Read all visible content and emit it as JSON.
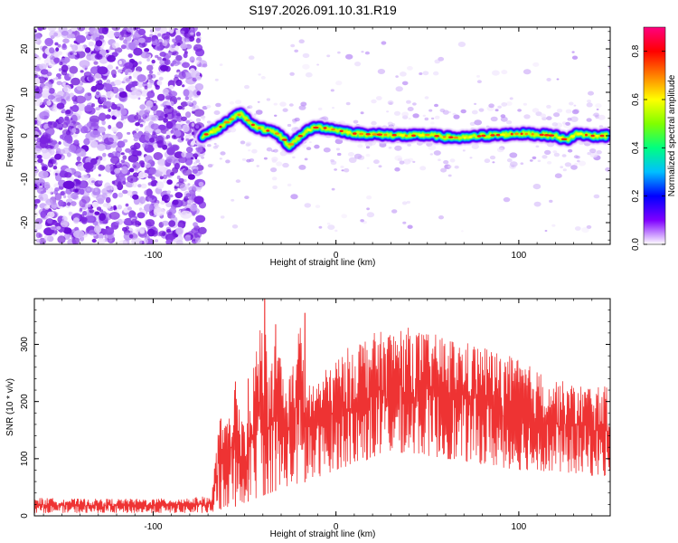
{
  "title": "S197.2026.091.10.31.R19",
  "chart_data": [
    {
      "type": "heatmap",
      "name": "spectrogram",
      "xlabel": "Height of straight line (km)",
      "ylabel": "Frequency (Hz)",
      "xlim": [
        -165,
        150
      ],
      "ylim": [
        -25,
        25
      ],
      "x_ticks": [
        -100,
        0,
        100
      ],
      "x_tick_labels": [
        "-100",
        "0",
        "100"
      ],
      "y_ticks": [
        -20,
        -10,
        0,
        10,
        20
      ],
      "y_tick_labels": [
        "-20",
        "-10",
        "0",
        "10",
        "20"
      ],
      "noise_region_x": [
        -165,
        -75
      ],
      "signal_start_x": -75,
      "ridge": {
        "x": [
          -73,
          -70,
          -65,
          -60,
          -55,
          -52,
          -48,
          -44,
          -40,
          -36,
          -32,
          -28,
          -26,
          -22,
          -18,
          -14,
          -10,
          -6,
          -2,
          4,
          10,
          20,
          30,
          40,
          50,
          60,
          70,
          80,
          90,
          100,
          110,
          120,
          126,
          132,
          140,
          148
        ],
        "freq": [
          0,
          0.5,
          1.5,
          3,
          4.5,
          5,
          3.5,
          2,
          1.5,
          1,
          0.5,
          -1,
          -2.5,
          -1,
          0.5,
          1.5,
          2,
          1.8,
          1.5,
          1,
          0.5,
          0.3,
          0.2,
          0,
          0.2,
          -0.3,
          -0.5,
          0,
          0.2,
          0.5,
          0.3,
          0,
          -1,
          0.5,
          0,
          0
        ]
      },
      "colorbar": {
        "label": "Normalized spectral amplitude",
        "range": [
          0.0,
          0.9
        ],
        "ticks": [
          0.0,
          0.2,
          0.4,
          0.6,
          0.8
        ],
        "tick_labels": [
          "0.0",
          "0.2",
          "0.4",
          "0.6",
          "0.8"
        ],
        "colors": [
          "#ffffff",
          "#7f00ff",
          "#0000ff",
          "#00bfff",
          "#00ff80",
          "#80ff00",
          "#ffff00",
          "#ff8000",
          "#ff0000",
          "#ff0080"
        ]
      }
    },
    {
      "type": "line",
      "name": "snr",
      "xlabel": "Height of straight line (km)",
      "ylabel": "SNR (10 * v/v)",
      "xlim": [
        -165,
        150
      ],
      "ylim": [
        0,
        380
      ],
      "x_ticks": [
        -100,
        0,
        100
      ],
      "x_tick_labels": [
        "-100",
        "0",
        "100"
      ],
      "y_ticks": [
        0,
        100,
        200,
        300
      ],
      "y_tick_labels": [
        "0",
        "100",
        "200",
        "300"
      ],
      "color": "#ee3333",
      "envelope": {
        "x": [
          -165,
          -140,
          -100,
          -80,
          -68,
          -64,
          -60,
          -56,
          -52,
          -48,
          -44,
          -40,
          -36,
          -32,
          -28,
          -24,
          -20,
          -16,
          -12,
          -8,
          -4,
          0,
          5,
          10,
          20,
          30,
          40,
          50,
          60,
          70,
          80,
          90,
          100,
          110,
          120,
          130,
          140,
          150
        ],
        "max": [
          32,
          30,
          30,
          32,
          35,
          170,
          160,
          235,
          170,
          190,
          290,
          380,
          260,
          330,
          235,
          260,
          350,
          245,
          235,
          250,
          260,
          275,
          290,
          305,
          320,
          325,
          330,
          320,
          315,
          305,
          300,
          285,
          275,
          255,
          240,
          230,
          230,
          225
        ],
        "min": [
          5,
          5,
          5,
          5,
          5,
          10,
          15,
          15,
          20,
          25,
          30,
          35,
          40,
          45,
          50,
          55,
          55,
          60,
          65,
          70,
          75,
          80,
          85,
          90,
          100,
          110,
          110,
          105,
          100,
          95,
          90,
          85,
          80,
          80,
          75,
          75,
          70,
          70
        ]
      },
      "spikes": [
        {
          "x": -63,
          "y": 170
        },
        {
          "x": -55,
          "y": 235
        },
        {
          "x": -48,
          "y": 240
        },
        {
          "x": -39,
          "y": 380
        },
        {
          "x": -33,
          "y": 335
        },
        {
          "x": -17,
          "y": 355
        }
      ]
    }
  ]
}
